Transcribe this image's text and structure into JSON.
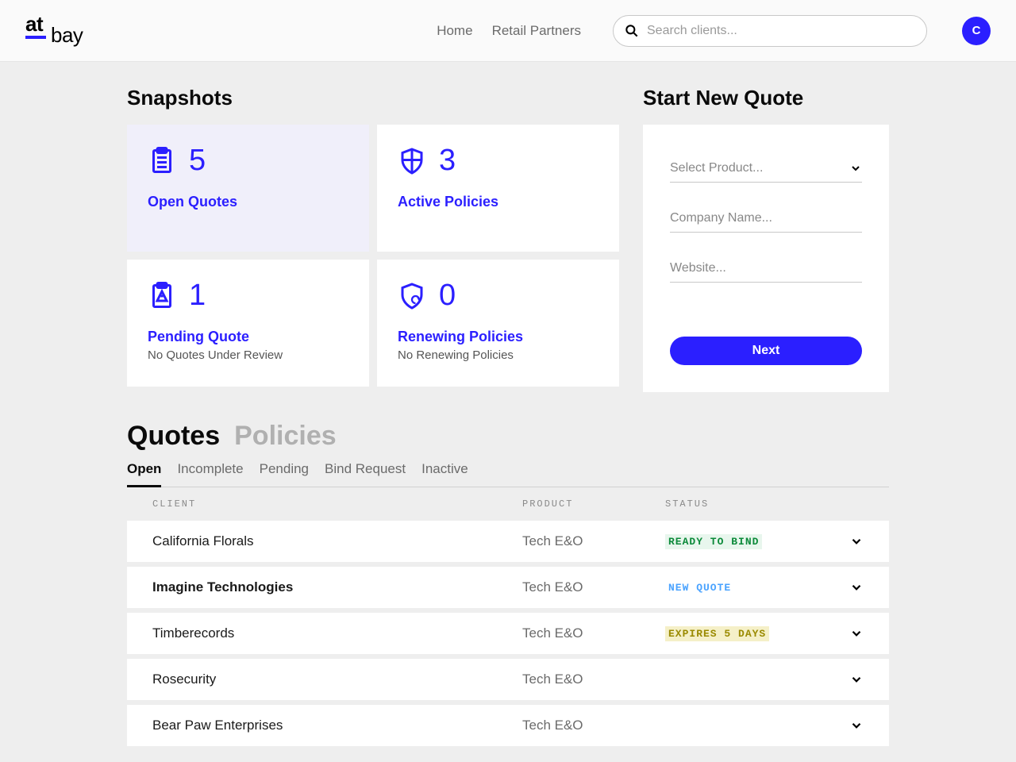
{
  "header": {
    "logo_at": "at",
    "logo_bay": "bay",
    "nav": {
      "home": "Home",
      "retail": "Retail Partners"
    },
    "search_placeholder": "Search clients...",
    "avatar_initial": "C"
  },
  "snapshots": {
    "title": "Snapshots",
    "cards": [
      {
        "count": "5",
        "label": "Open Quotes",
        "sub": "",
        "icon": "clipboard"
      },
      {
        "count": "3",
        "label": "Active Policies",
        "sub": "",
        "icon": "shield"
      },
      {
        "count": "1",
        "label": "Pending Quote",
        "sub": "No Quotes Under Review",
        "icon": "clipboard-alert"
      },
      {
        "count": "0",
        "label": "Renewing Policies",
        "sub": "No Renewing Policies",
        "icon": "shield-refresh"
      }
    ]
  },
  "new_quote": {
    "title": "Start New Quote",
    "product_placeholder": "Select Product...",
    "company_placeholder": "Company Name...",
    "website_placeholder": "Website...",
    "next_label": "Next"
  },
  "tabs": {
    "big": {
      "quotes": "Quotes",
      "policies": "Policies"
    },
    "sub": {
      "open": "Open",
      "incomplete": "Incomplete",
      "pending": "Pending",
      "bind": "Bind Request",
      "inactive": "Inactive"
    }
  },
  "table": {
    "headers": {
      "client": "CLIENT",
      "product": "PRODUCT",
      "status": "STATUS"
    },
    "rows": [
      {
        "client": "California Florals",
        "product": "Tech E&O",
        "status": "READY TO BIND",
        "status_class": "status-ready",
        "bold": false
      },
      {
        "client": "Imagine Technologies",
        "product": "Tech E&O",
        "status": "NEW QUOTE",
        "status_class": "status-new",
        "bold": true
      },
      {
        "client": "Timberecords",
        "product": "Tech E&O",
        "status": "EXPIRES 5 DAYS",
        "status_class": "status-expires",
        "bold": false
      },
      {
        "client": "Rosecurity",
        "product": "Tech E&O",
        "status": "",
        "status_class": "",
        "bold": false
      },
      {
        "client": "Bear Paw Enterprises",
        "product": "Tech E&O",
        "status": "",
        "status_class": "",
        "bold": false
      }
    ]
  },
  "colors": {
    "primary": "#2b1fff",
    "bg": "#eeeeee"
  }
}
